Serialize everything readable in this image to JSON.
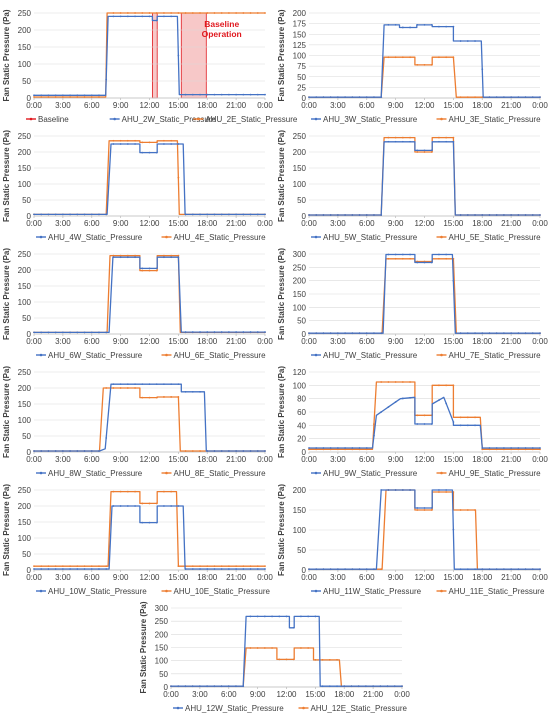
{
  "colors": {
    "blue": "#4472c4",
    "orange": "#ed7d31",
    "red": "#e0191f",
    "band": "#f4b6b6"
  },
  "x_ticks": [
    "0:00",
    "3:00",
    "6:00",
    "9:00",
    "12:00",
    "15:00",
    "18:00",
    "21:00",
    "0:00"
  ],
  "ylabel": "Fan Static Pressure (Pa)",
  "chart_data": [
    {
      "id": "ahu2",
      "type": "line",
      "ylabel": "Fan Static Pressure (Pa)",
      "ylim": [
        0,
        250
      ],
      "yticks": [
        0,
        50,
        100,
        150,
        200,
        250
      ],
      "legend": [
        "Baseline",
        "AHU_2W_Static_Pressure",
        "AHU_2E_Static_Pressure"
      ],
      "annotation": "Baseline\nOperation",
      "baseline_intervals": [
        [
          12.3,
          12.8
        ],
        [
          15.3,
          17.9
        ]
      ],
      "series": [
        {
          "name": "AHU_2W_Static_Pressure",
          "color": "blue",
          "x": [
            0,
            7.45,
            7.7,
            12.3,
            12.3,
            12.8,
            12.8,
            14.9,
            15.1,
            24
          ],
          "y": [
            8,
            8,
            240,
            240,
            228,
            228,
            240,
            240,
            10,
            10
          ]
        },
        {
          "name": "AHU_2E_Static_Pressure",
          "color": "orange",
          "x": [
            0,
            7.45,
            7.6,
            24
          ],
          "y": [
            3,
            3,
            250,
            250
          ]
        }
      ]
    },
    {
      "id": "ahu3",
      "type": "line",
      "ylabel": "Fan Static Pressure (Pa)",
      "ylim": [
        0,
        200
      ],
      "yticks": [
        0,
        25,
        50,
        75,
        100,
        125,
        150,
        175,
        200
      ],
      "legend": [
        "AHU_3W_Static_Pressure",
        "AHU_3E_Static_Pressure"
      ],
      "series": [
        {
          "name": "AHU_3W_Static_Pressure",
          "color": "blue",
          "x": [
            0,
            7.5,
            7.8,
            9.4,
            9.4,
            11.2,
            11.2,
            12.8,
            12.8,
            15.0,
            15.0,
            17.9,
            18.1,
            24
          ],
          "y": [
            2,
            2,
            172,
            172,
            166,
            166,
            172,
            172,
            168,
            168,
            134,
            134,
            2,
            2
          ]
        },
        {
          "name": "AHU_3E_Static_Pressure",
          "color": "orange",
          "x": [
            0,
            7.5,
            7.8,
            11.0,
            11.0,
            12.8,
            12.8,
            15.0,
            15.3,
            24
          ],
          "y": [
            2,
            2,
            96,
            96,
            78,
            78,
            96,
            96,
            2,
            2
          ]
        }
      ]
    },
    {
      "id": "ahu4",
      "type": "line",
      "ylabel": "Fan Static Pressure (Pa)",
      "ylim": [
        0,
        250
      ],
      "yticks": [
        0,
        50,
        100,
        150,
        200,
        250
      ],
      "legend": [
        "AHU_4W_Static_Pressure",
        "AHU_4E_Static_Pressure"
      ],
      "series": [
        {
          "name": "AHU_4W_Static_Pressure",
          "color": "blue",
          "x": [
            0,
            7.6,
            8.0,
            11.0,
            11.0,
            12.8,
            12.8,
            15.5,
            15.7,
            24
          ],
          "y": [
            5,
            5,
            225,
            225,
            198,
            198,
            225,
            225,
            5,
            5
          ]
        },
        {
          "name": "AHU_4E_Static_Pressure",
          "color": "orange",
          "x": [
            0,
            7.5,
            7.8,
            11.0,
            11.0,
            12.8,
            12.8,
            14.9,
            15.1,
            24
          ],
          "y": [
            5,
            5,
            235,
            235,
            230,
            230,
            235,
            235,
            5,
            5
          ]
        }
      ]
    },
    {
      "id": "ahu5",
      "type": "line",
      "ylabel": "Fan Static Pressure (Pa)",
      "ylim": [
        0,
        250
      ],
      "yticks": [
        0,
        50,
        100,
        150,
        200,
        250
      ],
      "legend": [
        "AHU_5W_Static_Pressure",
        "AHU_5E_Static_Pressure"
      ],
      "series": [
        {
          "name": "AHU_5W_Static_Pressure",
          "color": "blue",
          "x": [
            0,
            7.5,
            7.8,
            11.0,
            11.0,
            12.8,
            12.8,
            15.0,
            15.2,
            24
          ],
          "y": [
            3,
            3,
            232,
            232,
            205,
            205,
            232,
            232,
            3,
            3
          ]
        },
        {
          "name": "AHU_5E_Static_Pressure",
          "color": "orange",
          "x": [
            0,
            7.5,
            7.8,
            11.0,
            11.0,
            12.8,
            12.8,
            15.0,
            15.2,
            24
          ],
          "y": [
            3,
            3,
            245,
            245,
            200,
            200,
            245,
            245,
            3,
            3
          ]
        }
      ]
    },
    {
      "id": "ahu6",
      "type": "line",
      "ylabel": "Fan Static Pressure (Pa)",
      "ylim": [
        0,
        250
      ],
      "yticks": [
        0,
        50,
        100,
        150,
        200,
        250
      ],
      "legend": [
        "AHU_6W_Static_Pressure",
        "AHU_6E_Static_Pressure"
      ],
      "series": [
        {
          "name": "AHU_6W_Static_Pressure",
          "color": "blue",
          "x": [
            0,
            7.8,
            8.2,
            11.0,
            11.0,
            12.8,
            12.8,
            15.0,
            15.3,
            24
          ],
          "y": [
            5,
            5,
            240,
            240,
            205,
            205,
            240,
            240,
            6,
            6
          ]
        },
        {
          "name": "AHU_6E_Static_Pressure",
          "color": "orange",
          "x": [
            0,
            7.6,
            7.9,
            11.0,
            11.0,
            12.8,
            12.8,
            15.0,
            15.2,
            24
          ],
          "y": [
            5,
            5,
            245,
            245,
            198,
            198,
            245,
            245,
            5,
            5
          ]
        }
      ]
    },
    {
      "id": "ahu7",
      "type": "line",
      "ylabel": "Fan Static Pressure (Pa)",
      "ylim": [
        0,
        300
      ],
      "yticks": [
        0,
        50,
        100,
        150,
        200,
        250,
        300
      ],
      "legend": [
        "AHU_7W_Static_Pressure",
        "AHU_7E_Static_Pressure"
      ],
      "series": [
        {
          "name": "AHU_7W_Static_Pressure",
          "color": "blue",
          "x": [
            0,
            7.7,
            8.0,
            11.0,
            11.0,
            12.8,
            12.8,
            14.9,
            15.2,
            24
          ],
          "y": [
            3,
            3,
            298,
            298,
            268,
            268,
            298,
            298,
            3,
            3
          ]
        },
        {
          "name": "AHU_7E_Static_Pressure",
          "color": "orange",
          "x": [
            0,
            7.6,
            8.0,
            11.0,
            11.0,
            12.8,
            12.8,
            15.0,
            15.3,
            24
          ],
          "y": [
            3,
            3,
            282,
            282,
            272,
            272,
            282,
            282,
            3,
            3
          ]
        }
      ]
    },
    {
      "id": "ahu8",
      "type": "line",
      "ylabel": "Fan Static Pressure (Pa)",
      "ylim": [
        0,
        250
      ],
      "yticks": [
        0,
        50,
        100,
        150,
        200,
        250
      ],
      "legend": [
        "AHU_8W_Static_Pressure",
        "AHU_8E_Static_Pressure"
      ],
      "series": [
        {
          "name": "AHU_8W_Static_Pressure",
          "color": "blue",
          "x": [
            0,
            6.8,
            7.4,
            8.0,
            15.3,
            15.3,
            17.7,
            17.9,
            24
          ],
          "y": [
            3,
            3,
            10,
            212,
            212,
            188,
            188,
            3,
            3
          ]
        },
        {
          "name": "AHU_8E_Static_Pressure",
          "color": "orange",
          "x": [
            0,
            6.8,
            7.2,
            11.0,
            11.0,
            12.8,
            12.8,
            15.0,
            15.2,
            24
          ],
          "y": [
            3,
            3,
            200,
            200,
            170,
            170,
            172,
            172,
            3,
            3
          ]
        }
      ]
    },
    {
      "id": "ahu9",
      "type": "line",
      "ylabel": "Fan Static Pressure (Pa)",
      "ylim": [
        0,
        120
      ],
      "yticks": [
        0,
        20,
        40,
        60,
        80,
        100,
        120
      ],
      "legend": [
        "AHU_9W_Static_Pressure",
        "AHU_9E_Static_Pressure"
      ],
      "series": [
        {
          "name": "AHU_9W_Static_Pressure",
          "color": "blue",
          "x": [
            0,
            6.6,
            7.0,
            8.5,
            9.5,
            11.0,
            11.0,
            12.8,
            12.8,
            14.0,
            15.0,
            15.0,
            17.8,
            18.0,
            24
          ],
          "y": [
            6,
            6,
            55,
            70,
            80,
            82,
            42,
            42,
            72,
            82,
            45,
            40,
            40,
            6,
            6
          ]
        },
        {
          "name": "AHU_9E_Static_Pressure",
          "color": "orange",
          "x": [
            0,
            6.6,
            7.0,
            11.0,
            11.0,
            12.8,
            12.8,
            15.0,
            15.0,
            17.8,
            18.0,
            24
          ],
          "y": [
            4,
            4,
            105,
            105,
            55,
            55,
            100,
            100,
            52,
            52,
            4,
            4
          ]
        }
      ]
    },
    {
      "id": "ahu10",
      "type": "line",
      "ylabel": "Fan Static Pressure (Pa)",
      "ylim": [
        0,
        250
      ],
      "yticks": [
        0,
        50,
        100,
        150,
        200,
        250
      ],
      "legend": [
        "AHU_10W_Static_Pressure",
        "AHU_10E_Static_Pressure"
      ],
      "series": [
        {
          "name": "AHU_10W_Static_Pressure",
          "color": "blue",
          "x": [
            0,
            7.8,
            8.1,
            11.0,
            11.0,
            12.8,
            12.8,
            15.5,
            15.7,
            24
          ],
          "y": [
            3,
            3,
            200,
            200,
            148,
            148,
            200,
            200,
            3,
            3
          ]
        },
        {
          "name": "AHU_10E_Static_Pressure",
          "color": "orange",
          "x": [
            0,
            7.7,
            8.0,
            11.0,
            11.0,
            12.8,
            12.8,
            14.8,
            15.0,
            24
          ],
          "y": [
            12,
            12,
            245,
            245,
            208,
            208,
            245,
            245,
            12,
            12
          ]
        }
      ]
    },
    {
      "id": "ahu11",
      "type": "line",
      "ylabel": "Fan Static Pressure (Pa)",
      "ylim": [
        0,
        200
      ],
      "yticks": [
        0,
        50,
        100,
        150,
        200
      ],
      "legend": [
        "AHU_11W_Static_Pressure",
        "AHU_11E_Static_Pressure"
      ],
      "series": [
        {
          "name": "AHU_11W_Static_Pressure",
          "color": "blue",
          "x": [
            0,
            7.0,
            7.5,
            11.0,
            11.0,
            12.8,
            12.8,
            14.9,
            15.1,
            24
          ],
          "y": [
            2,
            2,
            200,
            200,
            155,
            155,
            200,
            200,
            2,
            2
          ]
        },
        {
          "name": "AHU_11E_Static_Pressure",
          "color": "orange",
          "x": [
            0,
            7.6,
            8.0,
            11.0,
            11.0,
            12.8,
            12.8,
            15.0,
            15.0,
            17.3,
            17.5,
            24
          ],
          "y": [
            2,
            2,
            200,
            200,
            150,
            150,
            195,
            195,
            150,
            150,
            2,
            2
          ]
        }
      ]
    },
    {
      "id": "ahu12",
      "type": "line",
      "ylabel": "Fan Static Pressure (Pa)",
      "ylim": [
        0,
        300
      ],
      "yticks": [
        0,
        50,
        100,
        150,
        200,
        250,
        300
      ],
      "legend": [
        "AHU_12W_Static_Pressure",
        "AHU_12E_Static_Pressure"
      ],
      "series": [
        {
          "name": "AHU_12W_Static_Pressure",
          "color": "blue",
          "x": [
            0,
            7.5,
            7.8,
            12.3,
            12.3,
            12.8,
            12.8,
            15.4,
            15.5,
            24
          ],
          "y": [
            3,
            3,
            268,
            268,
            225,
            225,
            268,
            268,
            3,
            3
          ]
        },
        {
          "name": "AHU_12E_Static_Pressure",
          "color": "orange",
          "x": [
            0,
            7.5,
            7.8,
            11.0,
            11.0,
            12.8,
            12.8,
            14.8,
            14.8,
            17.5,
            17.7,
            24
          ],
          "y": [
            3,
            3,
            148,
            148,
            105,
            105,
            148,
            148,
            103,
            103,
            3,
            3
          ]
        }
      ]
    }
  ]
}
